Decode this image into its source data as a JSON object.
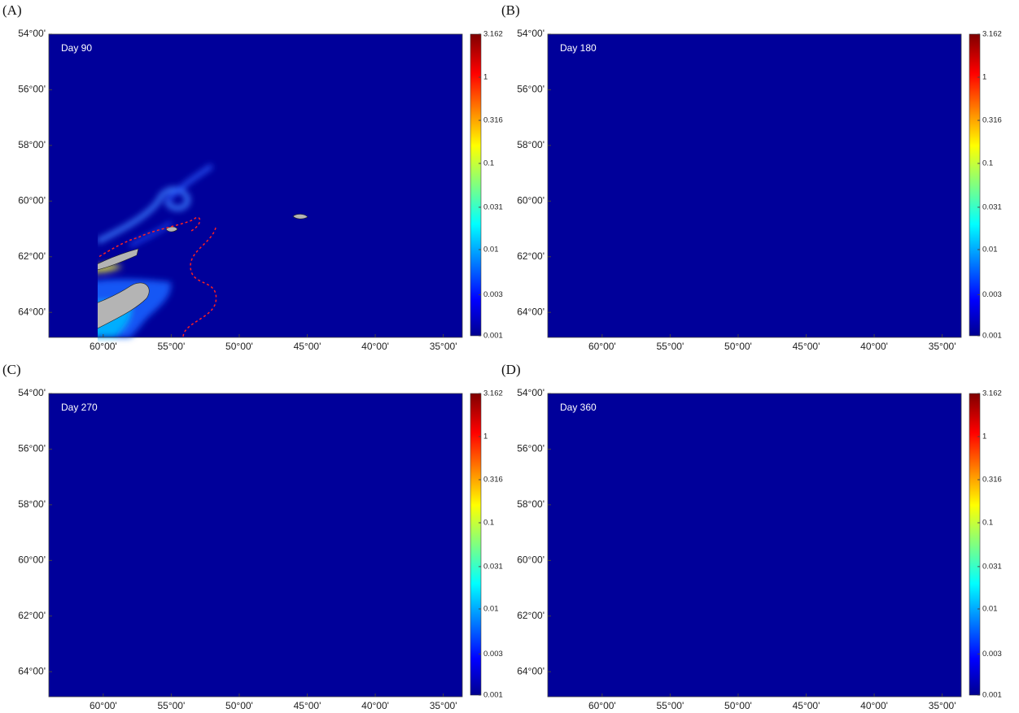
{
  "chart_data": [
    {
      "type": "map",
      "label": "(A)",
      "title": "Day 90",
      "xlim": [
        64,
        33.6
      ],
      "xticks": [
        {
          "value": 60,
          "label": "60°00'"
        },
        {
          "value": 55,
          "label": "55°00'"
        },
        {
          "value": 50,
          "label": "50°00'"
        },
        {
          "value": 45,
          "label": "45°00'"
        },
        {
          "value": 40,
          "label": "40°00'"
        },
        {
          "value": 35,
          "label": "35°00'"
        }
      ],
      "ylim": [
        54,
        64.9
      ],
      "yticks": [
        {
          "value": 54,
          "label": "54°00'"
        },
        {
          "value": 56,
          "label": "56°00'"
        },
        {
          "value": 58,
          "label": "58°00'"
        },
        {
          "value": 60,
          "label": "60°00'"
        },
        {
          "value": 62,
          "label": "62°00'"
        },
        {
          "value": 64,
          "label": "64°00'"
        }
      ],
      "clim": [
        0.001,
        3.162
      ],
      "cticks": [
        0.001,
        0.003,
        0.01,
        0.031,
        0.1,
        0.316,
        1,
        3.162
      ],
      "clog": true
    },
    {
      "type": "map",
      "label": "(B)",
      "title": "Day 180",
      "xlim": [
        64,
        33.6
      ],
      "xticks": [
        {
          "value": 60,
          "label": "60°00'"
        },
        {
          "value": 55,
          "label": "55°00'"
        },
        {
          "value": 50,
          "label": "50°00'"
        },
        {
          "value": 45,
          "label": "45°00'"
        },
        {
          "value": 40,
          "label": "40°00'"
        },
        {
          "value": 35,
          "label": "35°00'"
        }
      ],
      "ylim": [
        54,
        64.9
      ],
      "yticks": [
        {
          "value": 54,
          "label": "54°00'"
        },
        {
          "value": 56,
          "label": "56°00'"
        },
        {
          "value": 58,
          "label": "58°00'"
        },
        {
          "value": 60,
          "label": "60°00'"
        },
        {
          "value": 62,
          "label": "62°00'"
        },
        {
          "value": 64,
          "label": "64°00'"
        }
      ],
      "clim": [
        0.001,
        3.162
      ],
      "cticks": [
        0.001,
        0.003,
        0.01,
        0.031,
        0.1,
        0.316,
        1,
        3.162
      ],
      "clog": true
    },
    {
      "type": "map",
      "label": "(C)",
      "title": "Day 270",
      "xlim": [
        64,
        33.6
      ],
      "xticks": [
        {
          "value": 60,
          "label": "60°00'"
        },
        {
          "value": 55,
          "label": "55°00'"
        },
        {
          "value": 50,
          "label": "50°00'"
        },
        {
          "value": 45,
          "label": "45°00'"
        },
        {
          "value": 40,
          "label": "40°00'"
        },
        {
          "value": 35,
          "label": "35°00'"
        }
      ],
      "ylim": [
        54,
        64.9
      ],
      "yticks": [
        {
          "value": 54,
          "label": "54°00'"
        },
        {
          "value": 56,
          "label": "56°00'"
        },
        {
          "value": 58,
          "label": "58°00'"
        },
        {
          "value": 60,
          "label": "60°00'"
        },
        {
          "value": 62,
          "label": "62°00'"
        },
        {
          "value": 64,
          "label": "64°00'"
        }
      ],
      "clim": [
        0.001,
        3.162
      ],
      "cticks": [
        0.001,
        0.003,
        0.01,
        0.031,
        0.1,
        0.316,
        1,
        3.162
      ],
      "clog": true
    },
    {
      "type": "map",
      "label": "(D)",
      "title": "Day 360",
      "xlim": [
        64,
        33.6
      ],
      "xticks": [
        {
          "value": 60,
          "label": "60°00'"
        },
        {
          "value": 55,
          "label": "55°00'"
        },
        {
          "value": 50,
          "label": "50°00'"
        },
        {
          "value": 45,
          "label": "45°00'"
        },
        {
          "value": 40,
          "label": "40°00'"
        },
        {
          "value": 35,
          "label": "35°00'"
        }
      ],
      "ylim": [
        54,
        64.9
      ],
      "yticks": [
        {
          "value": 54,
          "label": "54°00'"
        },
        {
          "value": 56,
          "label": "56°00'"
        },
        {
          "value": 58,
          "label": "58°00'"
        },
        {
          "value": 60,
          "label": "60°00'"
        },
        {
          "value": 62,
          "label": "62°00'"
        },
        {
          "value": 64,
          "label": "64°00'"
        }
      ],
      "clim": [
        0.001,
        3.162
      ],
      "cticks": [
        0.001,
        0.003,
        0.01,
        0.031,
        0.1,
        0.316,
        1,
        3.162
      ],
      "clog": true
    }
  ]
}
